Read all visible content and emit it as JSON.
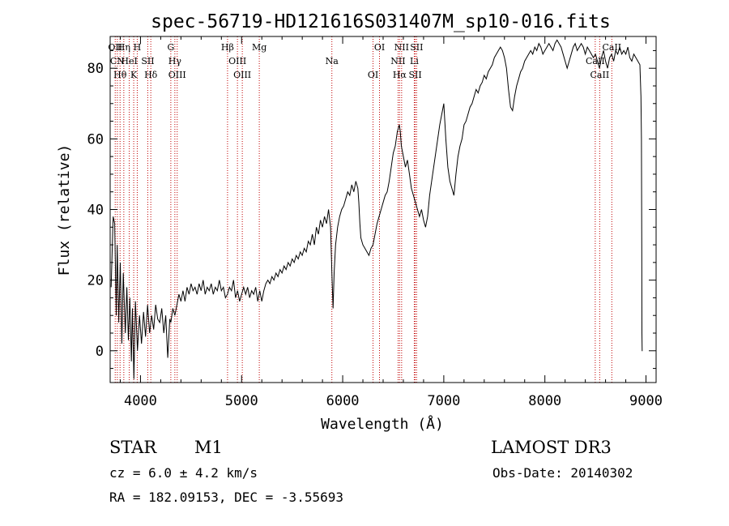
{
  "chart_data": {
    "type": "line",
    "title": "spec-56719-HD121616S031407M_sp10-016.fits",
    "xlabel": "Wavelength (Å)",
    "ylabel": "Flux (relative)",
    "xlim": [
      3700,
      9100
    ],
    "ylim": [
      -9,
      89
    ],
    "xticks": [
      4000,
      5000,
      6000,
      7000,
      8000,
      9000
    ],
    "yticks": [
      0,
      20,
      40,
      60,
      80
    ],
    "grid": false,
    "series": [
      {
        "name": "flux",
        "points": [
          [
            3710,
            18
          ],
          [
            3730,
            38
          ],
          [
            3745,
            36
          ],
          [
            3760,
            10
          ],
          [
            3770,
            30
          ],
          [
            3785,
            8
          ],
          [
            3800,
            25
          ],
          [
            3815,
            2
          ],
          [
            3830,
            22
          ],
          [
            3850,
            5
          ],
          [
            3865,
            18
          ],
          [
            3880,
            3
          ],
          [
            3895,
            15
          ],
          [
            3910,
            -3
          ],
          [
            3920,
            12
          ],
          [
            3935,
            -8
          ],
          [
            3950,
            14
          ],
          [
            3970,
            0
          ],
          [
            3990,
            10
          ],
          [
            4010,
            2
          ],
          [
            4030,
            11
          ],
          [
            4050,
            4
          ],
          [
            4070,
            13
          ],
          [
            4090,
            5
          ],
          [
            4110,
            10
          ],
          [
            4130,
            6
          ],
          [
            4150,
            13
          ],
          [
            4170,
            9
          ],
          [
            4190,
            8
          ],
          [
            4210,
            12
          ],
          [
            4230,
            5
          ],
          [
            4250,
            10
          ],
          [
            4270,
            -2
          ],
          [
            4290,
            9
          ],
          [
            4300,
            8
          ],
          [
            4320,
            12
          ],
          [
            4340,
            10
          ],
          [
            4360,
            13
          ],
          [
            4380,
            16
          ],
          [
            4400,
            14
          ],
          [
            4420,
            17
          ],
          [
            4440,
            14
          ],
          [
            4460,
            18
          ],
          [
            4480,
            16
          ],
          [
            4500,
            19
          ],
          [
            4520,
            17
          ],
          [
            4540,
            18
          ],
          [
            4560,
            16
          ],
          [
            4580,
            19
          ],
          [
            4600,
            17
          ],
          [
            4620,
            20
          ],
          [
            4640,
            16
          ],
          [
            4660,
            18
          ],
          [
            4680,
            17
          ],
          [
            4700,
            19
          ],
          [
            4720,
            16
          ],
          [
            4740,
            18
          ],
          [
            4760,
            17
          ],
          [
            4780,
            20
          ],
          [
            4800,
            17
          ],
          [
            4820,
            18
          ],
          [
            4840,
            15
          ],
          [
            4860,
            16
          ],
          [
            4880,
            18
          ],
          [
            4900,
            17
          ],
          [
            4920,
            20
          ],
          [
            4940,
            15
          ],
          [
            4960,
            17
          ],
          [
            4980,
            14
          ],
          [
            5000,
            16
          ],
          [
            5020,
            18
          ],
          [
            5040,
            16
          ],
          [
            5060,
            18
          ],
          [
            5080,
            15
          ],
          [
            5100,
            17
          ],
          [
            5120,
            16
          ],
          [
            5140,
            18
          ],
          [
            5160,
            14
          ],
          [
            5180,
            17
          ],
          [
            5200,
            14
          ],
          [
            5220,
            17
          ],
          [
            5240,
            19
          ],
          [
            5260,
            20
          ],
          [
            5280,
            19
          ],
          [
            5300,
            21
          ],
          [
            5320,
            20
          ],
          [
            5340,
            22
          ],
          [
            5360,
            21
          ],
          [
            5380,
            23
          ],
          [
            5400,
            22
          ],
          [
            5420,
            24
          ],
          [
            5440,
            23
          ],
          [
            5460,
            25
          ],
          [
            5480,
            24
          ],
          [
            5500,
            26
          ],
          [
            5520,
            25
          ],
          [
            5540,
            27
          ],
          [
            5560,
            26
          ],
          [
            5580,
            28
          ],
          [
            5600,
            27
          ],
          [
            5620,
            29
          ],
          [
            5640,
            28
          ],
          [
            5660,
            31
          ],
          [
            5680,
            30
          ],
          [
            5700,
            33
          ],
          [
            5720,
            30
          ],
          [
            5740,
            35
          ],
          [
            5760,
            33
          ],
          [
            5780,
            37
          ],
          [
            5800,
            35
          ],
          [
            5820,
            38
          ],
          [
            5840,
            36
          ],
          [
            5860,
            40
          ],
          [
            5880,
            35
          ],
          [
            5895,
            20
          ],
          [
            5905,
            12
          ],
          [
            5915,
            22
          ],
          [
            5930,
            30
          ],
          [
            5950,
            35
          ],
          [
            5970,
            38
          ],
          [
            5990,
            40
          ],
          [
            6010,
            41
          ],
          [
            6030,
            43
          ],
          [
            6050,
            45
          ],
          [
            6070,
            44
          ],
          [
            6090,
            47
          ],
          [
            6110,
            45
          ],
          [
            6130,
            48
          ],
          [
            6150,
            46
          ],
          [
            6160,
            42
          ],
          [
            6170,
            36
          ],
          [
            6180,
            32
          ],
          [
            6200,
            30
          ],
          [
            6220,
            29
          ],
          [
            6240,
            28
          ],
          [
            6260,
            27
          ],
          [
            6280,
            29
          ],
          [
            6300,
            30
          ],
          [
            6320,
            33
          ],
          [
            6340,
            36
          ],
          [
            6360,
            38
          ],
          [
            6380,
            40
          ],
          [
            6400,
            42
          ],
          [
            6420,
            44
          ],
          [
            6440,
            45
          ],
          [
            6460,
            48
          ],
          [
            6480,
            52
          ],
          [
            6500,
            56
          ],
          [
            6520,
            58
          ],
          [
            6540,
            62
          ],
          [
            6560,
            64
          ],
          [
            6570,
            62
          ],
          [
            6580,
            58
          ],
          [
            6600,
            55
          ],
          [
            6620,
            52
          ],
          [
            6640,
            54
          ],
          [
            6660,
            50
          ],
          [
            6680,
            46
          ],
          [
            6700,
            44
          ],
          [
            6720,
            42
          ],
          [
            6740,
            40
          ],
          [
            6760,
            38
          ],
          [
            6780,
            40
          ],
          [
            6800,
            37
          ],
          [
            6820,
            35
          ],
          [
            6840,
            38
          ],
          [
            6860,
            44
          ],
          [
            6880,
            48
          ],
          [
            6900,
            52
          ],
          [
            6920,
            56
          ],
          [
            6940,
            60
          ],
          [
            6960,
            64
          ],
          [
            6980,
            67
          ],
          [
            7000,
            70
          ],
          [
            7020,
            60
          ],
          [
            7040,
            52
          ],
          [
            7060,
            48
          ],
          [
            7080,
            46
          ],
          [
            7100,
            44
          ],
          [
            7120,
            50
          ],
          [
            7140,
            55
          ],
          [
            7160,
            58
          ],
          [
            7180,
            60
          ],
          [
            7200,
            64
          ],
          [
            7220,
            65
          ],
          [
            7240,
            67
          ],
          [
            7260,
            69
          ],
          [
            7280,
            70
          ],
          [
            7300,
            72
          ],
          [
            7320,
            74
          ],
          [
            7340,
            73
          ],
          [
            7360,
            75
          ],
          [
            7380,
            76
          ],
          [
            7400,
            78
          ],
          [
            7420,
            77
          ],
          [
            7440,
            79
          ],
          [
            7460,
            80
          ],
          [
            7480,
            81
          ],
          [
            7500,
            83
          ],
          [
            7520,
            84
          ],
          [
            7540,
            85
          ],
          [
            7560,
            86
          ],
          [
            7580,
            85
          ],
          [
            7600,
            83
          ],
          [
            7620,
            80
          ],
          [
            7640,
            74
          ],
          [
            7660,
            69
          ],
          [
            7680,
            68
          ],
          [
            7700,
            72
          ],
          [
            7720,
            75
          ],
          [
            7740,
            77
          ],
          [
            7760,
            79
          ],
          [
            7780,
            80
          ],
          [
            7800,
            82
          ],
          [
            7820,
            83
          ],
          [
            7840,
            84
          ],
          [
            7860,
            85
          ],
          [
            7880,
            84
          ],
          [
            7900,
            86
          ],
          [
            7920,
            85
          ],
          [
            7940,
            87
          ],
          [
            7960,
            86
          ],
          [
            7980,
            84
          ],
          [
            8000,
            85
          ],
          [
            8020,
            86
          ],
          [
            8040,
            87
          ],
          [
            8060,
            86
          ],
          [
            8080,
            85
          ],
          [
            8100,
            87
          ],
          [
            8120,
            88
          ],
          [
            8140,
            87
          ],
          [
            8160,
            86
          ],
          [
            8180,
            84
          ],
          [
            8200,
            82
          ],
          [
            8220,
            80
          ],
          [
            8240,
            82
          ],
          [
            8260,
            84
          ],
          [
            8280,
            86
          ],
          [
            8300,
            87
          ],
          [
            8320,
            85
          ],
          [
            8340,
            86
          ],
          [
            8360,
            87
          ],
          [
            8380,
            86
          ],
          [
            8400,
            84
          ],
          [
            8420,
            86
          ],
          [
            8440,
            85
          ],
          [
            8460,
            84
          ],
          [
            8480,
            83
          ],
          [
            8500,
            84
          ],
          [
            8520,
            82
          ],
          [
            8540,
            80
          ],
          [
            8560,
            83
          ],
          [
            8580,
            85
          ],
          [
            8600,
            82
          ],
          [
            8620,
            80
          ],
          [
            8640,
            83
          ],
          [
            8660,
            84
          ],
          [
            8680,
            82
          ],
          [
            8700,
            85
          ],
          [
            8720,
            84
          ],
          [
            8740,
            86
          ],
          [
            8760,
            84
          ],
          [
            8780,
            85
          ],
          [
            8800,
            84
          ],
          [
            8820,
            86
          ],
          [
            8840,
            83
          ],
          [
            8860,
            82
          ],
          [
            8880,
            84
          ],
          [
            8900,
            83
          ],
          [
            8920,
            82
          ],
          [
            8940,
            81
          ],
          [
            8950,
            72
          ],
          [
            8955,
            60
          ],
          [
            8958,
            30
          ],
          [
            8960,
            5
          ],
          [
            8962,
            0
          ],
          [
            8966,
            0
          ]
        ]
      }
    ],
    "lines": [
      {
        "x": 3750,
        "labels": [
          "OII"
        ]
      },
      {
        "x": 3771,
        "labels": [
          "CN"
        ]
      },
      {
        "x": 3798,
        "labels": [
          "Hθ"
        ]
      },
      {
        "x": 3835,
        "labels": [
          "Hη"
        ]
      },
      {
        "x": 3889,
        "labels": [
          "HeI"
        ]
      },
      {
        "x": 3933,
        "labels": [
          "K"
        ]
      },
      {
        "x": 3968,
        "labels": [
          "H"
        ]
      },
      {
        "x": 4072,
        "labels": [
          "SII"
        ]
      },
      {
        "x": 4102,
        "labels": [
          "Hδ"
        ]
      },
      {
        "x": 4300,
        "labels": [
          "G"
        ]
      },
      {
        "x": 4340,
        "labels": [
          "Hγ"
        ]
      },
      {
        "x": 4363,
        "labels": [
          "OIII"
        ]
      },
      {
        "x": 4861,
        "labels": [
          "Hβ"
        ]
      },
      {
        "x": 4959,
        "labels": [
          "OIII"
        ]
      },
      {
        "x": 5007,
        "labels": [
          "OIII"
        ]
      },
      {
        "x": 5175,
        "labels": [
          "Mg"
        ]
      },
      {
        "x": 5893,
        "labels": [
          "Na"
        ]
      },
      {
        "x": 6300,
        "labels": [
          "OI"
        ]
      },
      {
        "x": 6364,
        "labels": [
          "OI"
        ]
      },
      {
        "x": 6548,
        "labels": [
          "NII"
        ]
      },
      {
        "x": 6563,
        "labels": [
          "Hα"
        ]
      },
      {
        "x": 6583,
        "labels": [
          "NII"
        ]
      },
      {
        "x": 6708,
        "labels": [
          "Li"
        ]
      },
      {
        "x": 6717,
        "labels": [
          "SII"
        ]
      },
      {
        "x": 6731,
        "labels": [
          "SII"
        ]
      },
      {
        "x": 8498,
        "labels": [
          "CaII"
        ]
      },
      {
        "x": 8542,
        "labels": [
          "CaII"
        ]
      },
      {
        "x": 8662,
        "labels": [
          "CaII"
        ]
      }
    ],
    "line_color": "#c00000",
    "series_color": "#000000"
  },
  "info": {
    "object_class": "STAR",
    "subclass": "M1",
    "survey": "LAMOST DR3",
    "redshift_text": "cz = 6.0 ± 4.2 km/s",
    "obs_date_text": "Obs-Date: 20140302",
    "coords_text": "RA = 182.09153, DEC =  -3.55693"
  }
}
